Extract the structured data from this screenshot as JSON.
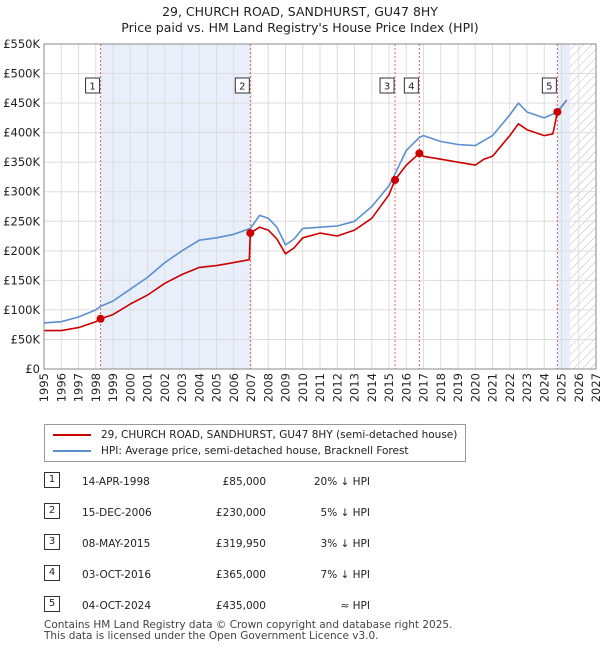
{
  "title_line1": "29, CHURCH ROAD, SANDHURST, GU47 8HY",
  "title_line2": "Price paid vs. HM Land Registry's House Price Index (HPI)",
  "colors": {
    "price": "#cc0000",
    "hpi": "#5b8fd0",
    "shade": "#e8eefa",
    "vline": "#e06060",
    "grid": "#dddddd"
  },
  "chart_data": {
    "type": "line",
    "xlim": [
      1995,
      2027
    ],
    "ylim": [
      0,
      550000
    ],
    "yticks": [
      {
        "v": 0,
        "label": "£0"
      },
      {
        "v": 50000,
        "label": "£50K"
      },
      {
        "v": 100000,
        "label": "£100K"
      },
      {
        "v": 150000,
        "label": "£150K"
      },
      {
        "v": 200000,
        "label": "£200K"
      },
      {
        "v": 250000,
        "label": "£250K"
      },
      {
        "v": 300000,
        "label": "£300K"
      },
      {
        "v": 350000,
        "label": "£350K"
      },
      {
        "v": 400000,
        "label": "£400K"
      },
      {
        "v": 450000,
        "label": "£450K"
      },
      {
        "v": 500000,
        "label": "£500K"
      },
      {
        "v": 550000,
        "label": "£550K"
      }
    ],
    "xticks": [
      "1995",
      "1996",
      "1997",
      "1998",
      "1999",
      "2000",
      "2001",
      "2002",
      "2003",
      "2004",
      "2005",
      "2006",
      "2007",
      "2008",
      "2009",
      "2010",
      "2011",
      "2012",
      "2013",
      "2014",
      "2015",
      "2016",
      "2017",
      "2018",
      "2019",
      "2020",
      "2021",
      "2022",
      "2023",
      "2024",
      "2025",
      "2026",
      "2027"
    ],
    "shaded_ranges": [
      [
        1998.28,
        2006.96
      ],
      [
        2024.76,
        2025.5
      ]
    ],
    "hatched_range": [
      2025.5,
      2027
    ],
    "series": [
      {
        "name": "29, CHURCH ROAD, SANDHURST, GU47 8HY (semi-detached house)",
        "key": "price",
        "points": [
          [
            1995.0,
            65000
          ],
          [
            1996.0,
            65000
          ],
          [
            1997.0,
            70000
          ],
          [
            1998.0,
            80000
          ],
          [
            1998.28,
            85000
          ],
          [
            1999.0,
            92000
          ],
          [
            2000.0,
            110000
          ],
          [
            2001.0,
            125000
          ],
          [
            2002.0,
            145000
          ],
          [
            2003.0,
            160000
          ],
          [
            2004.0,
            172000
          ],
          [
            2005.0,
            175000
          ],
          [
            2006.0,
            180000
          ],
          [
            2006.9,
            185000
          ],
          [
            2006.96,
            230000
          ],
          [
            2007.5,
            240000
          ],
          [
            2008.0,
            235000
          ],
          [
            2008.5,
            220000
          ],
          [
            2009.0,
            195000
          ],
          [
            2009.5,
            205000
          ],
          [
            2010.0,
            222000
          ],
          [
            2011.0,
            230000
          ],
          [
            2012.0,
            225000
          ],
          [
            2013.0,
            235000
          ],
          [
            2014.0,
            255000
          ],
          [
            2015.0,
            295000
          ],
          [
            2015.35,
            319950
          ],
          [
            2016.0,
            345000
          ],
          [
            2016.76,
            365000
          ],
          [
            2017.0,
            360000
          ],
          [
            2018.0,
            355000
          ],
          [
            2019.0,
            350000
          ],
          [
            2020.0,
            345000
          ],
          [
            2020.5,
            355000
          ],
          [
            2021.0,
            360000
          ],
          [
            2022.0,
            395000
          ],
          [
            2022.5,
            415000
          ],
          [
            2023.0,
            405000
          ],
          [
            2024.0,
            395000
          ],
          [
            2024.5,
            398000
          ],
          [
            2024.76,
            435000
          ],
          [
            2025.3,
            455000
          ]
        ]
      },
      {
        "name": "HPI: Average price, semi-detached house, Bracknell Forest",
        "key": "hpi",
        "points": [
          [
            1995.0,
            78000
          ],
          [
            1996.0,
            80000
          ],
          [
            1997.0,
            88000
          ],
          [
            1998.0,
            100000
          ],
          [
            1998.28,
            106000
          ],
          [
            1999.0,
            115000
          ],
          [
            2000.0,
            135000
          ],
          [
            2001.0,
            155000
          ],
          [
            2002.0,
            180000
          ],
          [
            2003.0,
            200000
          ],
          [
            2004.0,
            218000
          ],
          [
            2005.0,
            222000
          ],
          [
            2006.0,
            228000
          ],
          [
            2006.96,
            238000
          ],
          [
            2007.5,
            260000
          ],
          [
            2008.0,
            255000
          ],
          [
            2008.5,
            240000
          ],
          [
            2009.0,
            210000
          ],
          [
            2009.5,
            220000
          ],
          [
            2010.0,
            238000
          ],
          [
            2011.0,
            240000
          ],
          [
            2012.0,
            242000
          ],
          [
            2013.0,
            250000
          ],
          [
            2014.0,
            275000
          ],
          [
            2015.0,
            310000
          ],
          [
            2015.35,
            330000
          ],
          [
            2016.0,
            370000
          ],
          [
            2016.76,
            392000
          ],
          [
            2017.0,
            395000
          ],
          [
            2018.0,
            385000
          ],
          [
            2019.0,
            380000
          ],
          [
            2020.0,
            378000
          ],
          [
            2021.0,
            395000
          ],
          [
            2022.0,
            430000
          ],
          [
            2022.5,
            450000
          ],
          [
            2023.0,
            435000
          ],
          [
            2024.0,
            425000
          ],
          [
            2024.76,
            435000
          ],
          [
            2025.3,
            455000
          ]
        ]
      }
    ],
    "sales": [
      {
        "n": "1",
        "x": 1998.28,
        "price": 85000
      },
      {
        "n": "2",
        "x": 2006.96,
        "price": 230000
      },
      {
        "n": "3",
        "x": 2015.35,
        "price": 319950
      },
      {
        "n": "4",
        "x": 2016.76,
        "price": 365000
      },
      {
        "n": "5",
        "x": 2024.76,
        "price": 435000
      }
    ]
  },
  "legend": {
    "price_label": "29, CHURCH ROAD, SANDHURST, GU47 8HY (semi-detached house)",
    "hpi_label": "HPI: Average price, semi-detached house, Bracknell Forest"
  },
  "sales_table": [
    {
      "n": "1",
      "date": "14-APR-1998",
      "price": "£85,000",
      "hpi": "20% ↓ HPI"
    },
    {
      "n": "2",
      "date": "15-DEC-2006",
      "price": "£230,000",
      "hpi": "5% ↓ HPI"
    },
    {
      "n": "3",
      "date": "08-MAY-2015",
      "price": "£319,950",
      "hpi": "3% ↓ HPI"
    },
    {
      "n": "4",
      "date": "03-OCT-2016",
      "price": "£365,000",
      "hpi": "7% ↓ HPI"
    },
    {
      "n": "5",
      "date": "04-OCT-2024",
      "price": "£435,000",
      "hpi": "≈ HPI"
    }
  ],
  "footer_line1": "Contains HM Land Registry data © Crown copyright and database right 2025.",
  "footer_line2": "This data is licensed under the Open Government Licence v3.0."
}
